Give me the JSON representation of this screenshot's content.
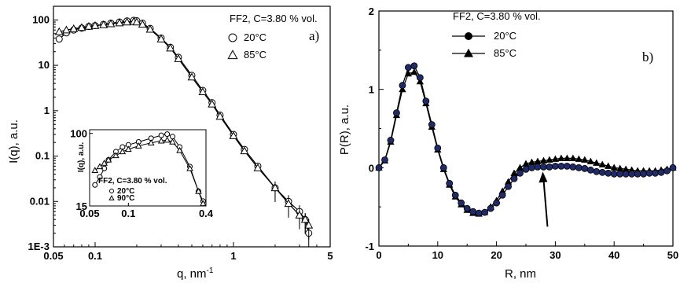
{
  "chart_data": [
    {
      "type": "scatter",
      "panel_label": "a)",
      "title": "FF2, C=3.80 % vol.",
      "xlabel": "q, nm",
      "xlabel_superscript": "-1",
      "ylabel": "I(q), a.u.",
      "xscale": "log",
      "yscale": "log",
      "xlim": [
        0.05,
        5
      ],
      "ylim": [
        0.001,
        200
      ],
      "xticks": [
        0.05,
        0.1,
        1,
        5
      ],
      "xtick_labels": [
        "0.05",
        "0.1",
        "1",
        "5"
      ],
      "yticks": [
        0.001,
        0.01,
        0.1,
        1,
        10,
        100
      ],
      "ytick_labels": [
        "1E-3",
        "0.01",
        "0.1",
        "1",
        "10",
        "100"
      ],
      "legend_position": "top-right",
      "series": [
        {
          "name": "20°C",
          "marker": "circle",
          "x": [
            0.055,
            0.062,
            0.07,
            0.08,
            0.09,
            0.1,
            0.115,
            0.13,
            0.15,
            0.17,
            0.19,
            0.2,
            0.22,
            0.25,
            0.3,
            0.35,
            0.4,
            0.5,
            0.6,
            0.7,
            0.8,
            1.0,
            1.2,
            1.5,
            2.0,
            2.5,
            3.0,
            3.3,
            3.5
          ],
          "y": [
            38,
            52,
            60,
            66,
            72,
            75,
            80,
            85,
            90,
            95,
            98,
            96,
            85,
            65,
            40,
            25,
            15,
            6,
            2.8,
            1.5,
            0.8,
            0.3,
            0.14,
            0.06,
            0.02,
            0.01,
            0.006,
            0.004,
            0.002
          ]
        },
        {
          "name": "85°C",
          "marker": "triangle",
          "x": [
            0.055,
            0.062,
            0.07,
            0.08,
            0.09,
            0.1,
            0.115,
            0.13,
            0.15,
            0.17,
            0.19,
            0.2,
            0.22,
            0.25,
            0.3,
            0.35,
            0.4,
            0.5,
            0.6,
            0.7,
            0.8,
            1.0,
            1.2,
            1.5,
            2.0,
            2.5,
            3.0,
            3.3,
            3.5
          ],
          "y": [
            55,
            60,
            64,
            68,
            72,
            75,
            78,
            82,
            86,
            90,
            92,
            90,
            80,
            62,
            38,
            24,
            14,
            5.5,
            2.6,
            1.4,
            0.75,
            0.28,
            0.13,
            0.055,
            0.02,
            0.009,
            0.005,
            0.004,
            0.003
          ]
        }
      ],
      "inset": {
        "title": "FF2, C=3.80 % vol.",
        "ylabel": "I(q), a.u.",
        "xlim": [
          0.05,
          0.4
        ],
        "ylim": [
          15,
          110
        ],
        "xtick_labels": [
          "0.05",
          "0.1",
          "0.4"
        ],
        "ytick_labels": [
          "15",
          "100"
        ],
        "series": [
          {
            "name": "20°C",
            "marker": "circle",
            "x": [
              0.055,
              0.06,
              0.065,
              0.07,
              0.08,
              0.09,
              0.1,
              0.12,
              0.15,
              0.18,
              0.2,
              0.22,
              0.25,
              0.3,
              0.35,
              0.38
            ],
            "y": [
              26,
              32,
              40,
              50,
              62,
              70,
              74,
              80,
              88,
              95,
              98,
              92,
              70,
              42,
              22,
              17
            ]
          },
          {
            "name": "90°C",
            "marker": "triangle",
            "x": [
              0.055,
              0.06,
              0.065,
              0.07,
              0.08,
              0.09,
              0.1,
              0.12,
              0.15,
              0.18,
              0.2,
              0.22,
              0.25,
              0.3,
              0.35,
              0.38
            ],
            "y": [
              38,
              42,
              46,
              50,
              56,
              62,
              66,
              72,
              78,
              82,
              84,
              80,
              64,
              40,
              22,
              16
            ]
          }
        ]
      }
    },
    {
      "type": "line",
      "panel_label": "b)",
      "title": "FF2, C=3.80 % vol.",
      "xlabel": "R, nm",
      "ylabel": "P(R), a.u.",
      "xlim": [
        0,
        50
      ],
      "ylim": [
        -1,
        2
      ],
      "xticks": [
        0,
        10,
        20,
        30,
        40,
        50
      ],
      "yticks": [
        -1,
        0,
        1,
        2
      ],
      "legend_position": "top-left",
      "series": [
        {
          "name": "20°C",
          "marker": "circle",
          "x": [
            0,
            1,
            2,
            3,
            4,
            5,
            6,
            7,
            8,
            9,
            10,
            11,
            12,
            13,
            14,
            15,
            16,
            17,
            18,
            19,
            20,
            21,
            22,
            23,
            24,
            25,
            26,
            27,
            28,
            29,
            30,
            31,
            32,
            33,
            34,
            35,
            36,
            37,
            38,
            39,
            40,
            41,
            42,
            43,
            44,
            45,
            46,
            47,
            48,
            49,
            50
          ],
          "y": [
            0,
            0.1,
            0.35,
            0.7,
            1.05,
            1.28,
            1.3,
            1.15,
            0.85,
            0.55,
            0.25,
            0.0,
            -0.2,
            -0.35,
            -0.45,
            -0.52,
            -0.56,
            -0.58,
            -0.57,
            -0.52,
            -0.45,
            -0.35,
            -0.24,
            -0.14,
            -0.07,
            -0.02,
            0.0,
            0.01,
            0.01,
            0.01,
            0.02,
            0.02,
            0.02,
            0.01,
            0.0,
            -0.01,
            -0.03,
            -0.05,
            -0.06,
            -0.07,
            -0.08,
            -0.08,
            -0.08,
            -0.08,
            -0.08,
            -0.08,
            -0.07,
            -0.07,
            -0.06,
            -0.04,
            0.0
          ]
        },
        {
          "name": "85°C",
          "marker": "triangle",
          "x": [
            0,
            1,
            2,
            3,
            4,
            5,
            6,
            7,
            8,
            9,
            10,
            11,
            12,
            13,
            14,
            15,
            16,
            17,
            18,
            19,
            20,
            21,
            22,
            23,
            24,
            25,
            26,
            27,
            28,
            29,
            30,
            31,
            32,
            33,
            34,
            35,
            36,
            37,
            38,
            39,
            40,
            41,
            42,
            43,
            44,
            45,
            46,
            47,
            48,
            49,
            50
          ],
          "y": [
            0,
            0.09,
            0.33,
            0.67,
            1.0,
            1.2,
            1.22,
            1.1,
            0.82,
            0.52,
            0.23,
            -0.02,
            -0.22,
            -0.37,
            -0.47,
            -0.54,
            -0.58,
            -0.59,
            -0.57,
            -0.5,
            -0.42,
            -0.3,
            -0.18,
            -0.07,
            0.0,
            0.05,
            0.07,
            0.08,
            0.09,
            0.1,
            0.11,
            0.12,
            0.12,
            0.12,
            0.11,
            0.1,
            0.08,
            0.06,
            0.04,
            0.02,
            0.0,
            -0.01,
            -0.02,
            -0.03,
            -0.04,
            -0.04,
            -0.04,
            -0.04,
            -0.03,
            -0.02,
            0.0
          ]
        }
      ],
      "annotation": "arrow pointing to R = 28 nm"
    }
  ]
}
